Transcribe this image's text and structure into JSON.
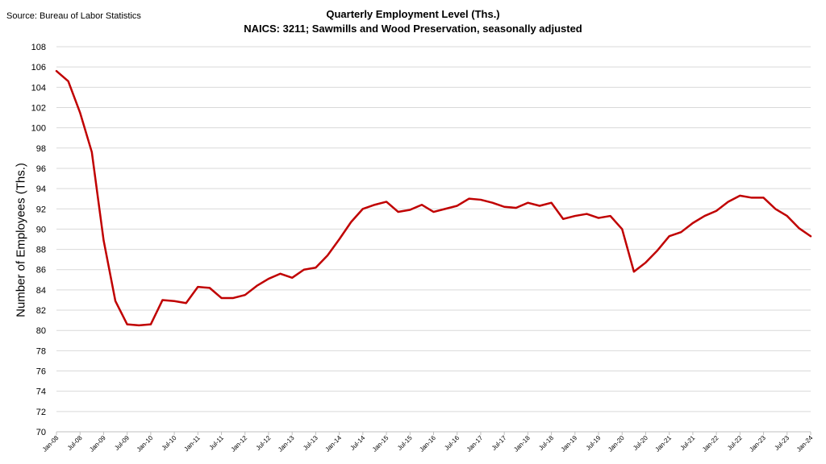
{
  "header": {
    "source": "Source: Bureau of Labor Statistics"
  },
  "chart_data": {
    "type": "line",
    "title": "Quarterly Employment Level (Ths.)",
    "subtitle": "NAICS: 3211; Sawmills and Wood Preservation, seasonally adjusted",
    "ylabel": "Number of Employees (Ths.)",
    "xlabel": "",
    "ylim": [
      70,
      108
    ],
    "yticks": [
      70,
      72,
      74,
      76,
      78,
      80,
      82,
      84,
      86,
      88,
      90,
      92,
      94,
      96,
      98,
      100,
      102,
      104,
      106,
      108
    ],
    "grid": true,
    "legend": "none",
    "line_color": "#c00000",
    "x_tick_labels": [
      "Jan-08",
      "Jul-08",
      "Jan-09",
      "Jul-09",
      "Jan-10",
      "Jul-10",
      "Jan-11",
      "Jul-11",
      "Jan-12",
      "Jul-12",
      "Jan-13",
      "Jul-13",
      "Jan-14",
      "Jul-14",
      "Jan-15",
      "Jul-15",
      "Jan-16",
      "Jul-16",
      "Jan-17",
      "Jul-17",
      "Jan-18",
      "Jul-18",
      "Jan-19",
      "Jul-19",
      "Jan-20",
      "Jul-20",
      "Jan-21",
      "Jul-21",
      "Jan-22",
      "Jul-22",
      "Jan-23",
      "Jul-23",
      "Jan-24"
    ],
    "x": [
      "Jan-08",
      "Apr-08",
      "Jul-08",
      "Oct-08",
      "Jan-09",
      "Apr-09",
      "Jul-09",
      "Oct-09",
      "Jan-10",
      "Apr-10",
      "Jul-10",
      "Oct-10",
      "Jan-11",
      "Apr-11",
      "Jul-11",
      "Oct-11",
      "Jan-12",
      "Apr-12",
      "Jul-12",
      "Oct-12",
      "Jan-13",
      "Apr-13",
      "Jul-13",
      "Oct-13",
      "Jan-14",
      "Apr-14",
      "Jul-14",
      "Oct-14",
      "Jan-15",
      "Apr-15",
      "Jul-15",
      "Oct-15",
      "Jan-16",
      "Apr-16",
      "Jul-16",
      "Oct-16",
      "Jan-17",
      "Apr-17",
      "Jul-17",
      "Oct-17",
      "Jan-18",
      "Apr-18",
      "Jul-18",
      "Oct-18",
      "Jan-19",
      "Apr-19",
      "Jul-19",
      "Oct-19",
      "Jan-20",
      "Apr-20",
      "Jul-20",
      "Oct-20",
      "Jan-21",
      "Apr-21",
      "Jul-21",
      "Oct-21",
      "Jan-22",
      "Apr-22",
      "Jul-22",
      "Oct-22",
      "Jan-23",
      "Apr-23",
      "Jul-23",
      "Oct-23",
      "Jan-24"
    ],
    "series": [
      {
        "values": [
          105.6,
          104.6,
          101.5,
          97.6,
          88.9,
          82.9,
          80.6,
          80.5,
          80.6,
          83.0,
          82.9,
          82.7,
          84.3,
          84.2,
          83.2,
          83.2,
          83.5,
          84.4,
          85.1,
          85.6,
          85.2,
          86.0,
          86.2,
          87.4,
          89.0,
          90.7,
          92.0,
          92.4,
          92.7,
          91.7,
          91.9,
          92.4,
          91.7,
          92.0,
          92.3,
          93.0,
          92.9,
          92.6,
          92.2,
          92.1,
          92.6,
          92.3,
          92.6,
          91.0,
          91.3,
          91.5,
          91.1,
          91.3,
          90.0,
          85.8,
          86.7,
          87.9,
          89.3,
          89.7,
          90.6,
          91.3,
          91.8,
          92.7,
          93.3,
          93.1,
          93.1,
          92.0,
          91.3,
          90.1,
          89.3
        ]
      }
    ]
  }
}
